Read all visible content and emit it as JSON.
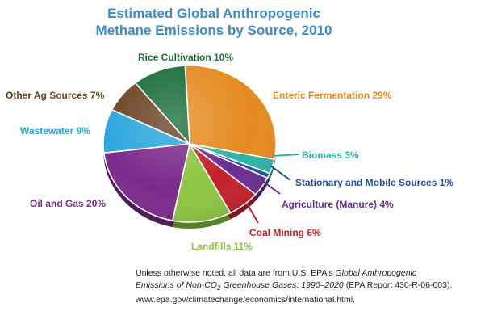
{
  "chart_data": {
    "type": "pie",
    "title_line1": "Estimated Global Anthropogenic",
    "title_line2": "Methane Emissions by Source, 2010",
    "slices": [
      {
        "label": "Enteric Fermentation 29%",
        "value": 29,
        "color": "#e58a1f"
      },
      {
        "label": "Biomass 3%",
        "value": 3,
        "color": "#2db3a6"
      },
      {
        "label": "Stationary and Mobile Sources 1%",
        "value": 1,
        "color": "#1f4f9a"
      },
      {
        "label": "Agriculture (Manure) 4%",
        "value": 4,
        "color": "#6a2c91"
      },
      {
        "label": "Coal Mining 6%",
        "value": 6,
        "color": "#c3202b"
      },
      {
        "label": "Landfills 11%",
        "value": 11,
        "color": "#8cc540"
      },
      {
        "label": "Oil and Gas 20%",
        "value": 20,
        "color": "#7b2a8b"
      },
      {
        "label": "Wastewater 9%",
        "value": 9,
        "color": "#2aa6de"
      },
      {
        "label": "Other Ag Sources 7%",
        "value": 7,
        "color": "#6b4426"
      },
      {
        "label": "Rice Cultivation 10%",
        "value": 10,
        "color": "#1b6e3c"
      }
    ]
  },
  "footnote": {
    "line1_prefix": "Unless otherwise noted, all data are from U.S. EPA's ",
    "line1_italic": "Global Anthropogenic",
    "line2_italic": "Emissions of Non-CO",
    "line2_sub": "2",
    "line2_italic_b": " Greenhouse Gases: 1990–2020",
    "line2_suffix": " (EPA Report 430-R-06-003),",
    "line3": "www.epa.gov/climatechange/economics/international.html."
  }
}
